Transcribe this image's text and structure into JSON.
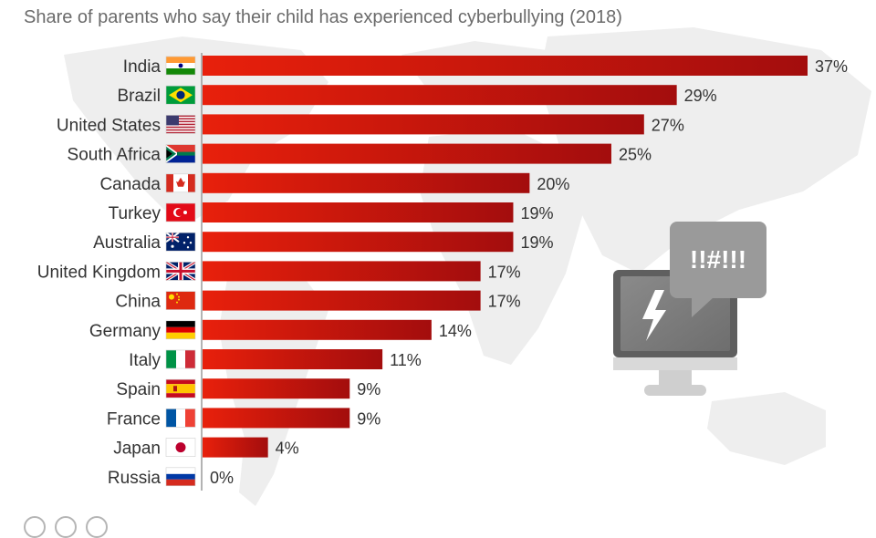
{
  "subtitle": "Share of parents who say their child has experienced cyberbullying (2018)",
  "chart_data": {
    "type": "bar",
    "orientation": "horizontal",
    "title": "",
    "subtitle": "Share of parents who say their child has experienced cyberbullying (2018)",
    "categories": [
      "India",
      "Brazil",
      "United States",
      "South Africa",
      "Canada",
      "Turkey",
      "Australia",
      "United Kingdom",
      "China",
      "Germany",
      "Italy",
      "Spain",
      "France",
      "Japan",
      "Russia"
    ],
    "values": [
      37,
      29,
      27,
      25,
      20,
      19,
      19,
      17,
      17,
      14,
      11,
      9,
      9,
      4,
      0
    ],
    "value_labels": [
      "37%",
      "29%",
      "27%",
      "25%",
      "20%",
      "19%",
      "19%",
      "17%",
      "17%",
      "14%",
      "11%",
      "9%",
      "9%",
      "4%",
      "0%"
    ],
    "xlim": [
      0,
      37
    ],
    "unit": "%",
    "grid": false,
    "legend": "none"
  },
  "illustration": {
    "speech_bubble_text": "!!#!!!"
  },
  "colors": {
    "bar_start": "#e8200c",
    "bar_end": "#a30d0d",
    "map": "#eeeeee",
    "text": "#333333",
    "subtitle": "#6b6b6b"
  }
}
